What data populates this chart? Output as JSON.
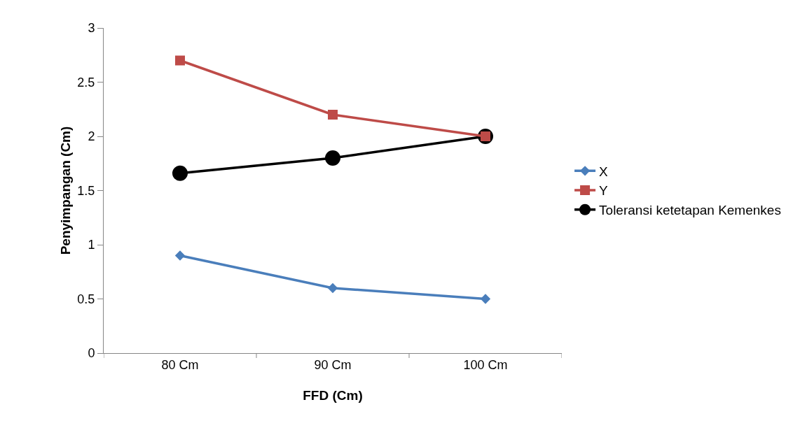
{
  "chart_data": {
    "type": "line",
    "xlabel": "FFD (Cm)",
    "ylabel": "Penyimpangan (Cm)",
    "categories": [
      "80 Cm",
      "90 Cm",
      "100 Cm"
    ],
    "series": [
      {
        "name": "X",
        "color": "#4a7ebb",
        "values": [
          0.9,
          0.6,
          0.5
        ],
        "marker": "diamond"
      },
      {
        "name": "Y",
        "color": "#be4b48",
        "values": [
          2.7,
          2.2,
          2.0
        ],
        "marker": "square"
      },
      {
        "name": "Toleransi ketetapan Kemenkes",
        "color": "#000000",
        "values": [
          1.66,
          1.8,
          2.0
        ],
        "marker": "circle"
      }
    ],
    "ylim": [
      0,
      3
    ],
    "yticks": [
      0,
      0.5,
      1,
      1.5,
      2,
      2.5,
      3
    ],
    "grid": false,
    "legend": "right",
    "line_style": "solid"
  }
}
